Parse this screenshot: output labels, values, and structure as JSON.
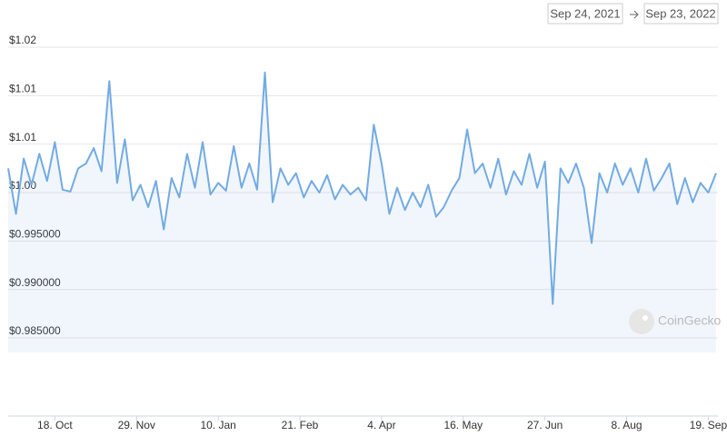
{
  "date_range": {
    "from": "Sep 24, 2021",
    "to": "Sep 23, 2022"
  },
  "watermark": "CoinGecko",
  "chart_data": {
    "type": "line",
    "color": "#72abe3",
    "grid": true,
    "xlim": [
      "2021-09-24",
      "2022-09-23"
    ],
    "xticks": [
      {
        "value": "2021-10-18",
        "label": "18. Oct"
      },
      {
        "value": "2021-11-29",
        "label": "29. Nov"
      },
      {
        "value": "2022-01-10",
        "label": "10. Jan"
      },
      {
        "value": "2022-02-21",
        "label": "21. Feb"
      },
      {
        "value": "2022-04-04",
        "label": "4. Apr"
      },
      {
        "value": "2022-05-16",
        "label": "16. May"
      },
      {
        "value": "2022-06-27",
        "label": "27. Jun"
      },
      {
        "value": "2022-08-08",
        "label": "8. Aug"
      },
      {
        "value": "2022-09-19",
        "label": "19. Sep"
      }
    ],
    "ylim": [
      0.9835,
      1.0165
    ],
    "yticks": [
      {
        "value": 0.985,
        "label": "$0.985000"
      },
      {
        "value": 0.99,
        "label": "$0.990000"
      },
      {
        "value": 0.995,
        "label": "$0.995000"
      },
      {
        "value": 1.0,
        "label": "$1.00"
      },
      {
        "value": 1.005,
        "label": "$1.01"
      },
      {
        "value": 1.01,
        "label": "$1.01"
      },
      {
        "value": 1.015,
        "label": "$1.02"
      }
    ],
    "x": [
      "2021-09-24",
      "2021-09-28",
      "2021-10-02",
      "2021-10-06",
      "2021-10-10",
      "2021-10-14",
      "2021-10-18",
      "2021-10-22",
      "2021-10-26",
      "2021-10-30",
      "2021-11-03",
      "2021-11-07",
      "2021-11-11",
      "2021-11-15",
      "2021-11-19",
      "2021-11-23",
      "2021-11-27",
      "2021-12-01",
      "2021-12-05",
      "2021-12-09",
      "2021-12-13",
      "2021-12-17",
      "2021-12-21",
      "2021-12-25",
      "2021-12-29",
      "2022-01-02",
      "2022-01-06",
      "2022-01-10",
      "2022-01-14",
      "2022-01-18",
      "2022-01-22",
      "2022-01-26",
      "2022-01-30",
      "2022-02-03",
      "2022-02-07",
      "2022-02-11",
      "2022-02-15",
      "2022-02-19",
      "2022-02-23",
      "2022-02-27",
      "2022-03-03",
      "2022-03-07",
      "2022-03-11",
      "2022-03-15",
      "2022-03-19",
      "2022-03-23",
      "2022-03-27",
      "2022-03-31",
      "2022-04-04",
      "2022-04-08",
      "2022-04-12",
      "2022-04-16",
      "2022-04-20",
      "2022-04-24",
      "2022-04-28",
      "2022-05-02",
      "2022-05-06",
      "2022-05-10",
      "2022-05-14",
      "2022-05-18",
      "2022-05-22",
      "2022-05-26",
      "2022-05-30",
      "2022-06-03",
      "2022-06-07",
      "2022-06-11",
      "2022-06-15",
      "2022-06-19",
      "2022-06-23",
      "2022-06-27",
      "2022-07-01",
      "2022-07-05",
      "2022-07-09",
      "2022-07-13",
      "2022-07-17",
      "2022-07-21",
      "2022-07-25",
      "2022-07-29",
      "2022-08-02",
      "2022-08-06",
      "2022-08-10",
      "2022-08-14",
      "2022-08-18",
      "2022-08-22",
      "2022-08-26",
      "2022-08-30",
      "2022-09-03",
      "2022-09-07",
      "2022-09-11",
      "2022-09-15",
      "2022-09-19",
      "2022-09-23"
    ],
    "values": [
      1.0025,
      0.9978,
      1.0035,
      1.0008,
      1.004,
      1.0012,
      1.0052,
      1.0003,
      1.0001,
      1.0025,
      1.003,
      1.0046,
      1.0022,
      1.0115,
      1.001,
      1.0055,
      0.9992,
      1.0008,
      0.9985,
      1.0012,
      0.9962,
      1.0015,
      0.9995,
      1.004,
      1.0005,
      1.0052,
      0.9998,
      1.001,
      1.0002,
      1.0048,
      1.0005,
      1.003,
      1.0003,
      1.0124,
      0.999,
      1.0025,
      1.0008,
      1.002,
      0.9995,
      1.0012,
      1.0,
      1.0018,
      0.9993,
      1.0008,
      0.9998,
      1.0005,
      0.9992,
      1.007,
      1.003,
      0.9978,
      1.0005,
      0.9982,
      1.0,
      0.9985,
      1.0008,
      0.9975,
      0.9985,
      1.0002,
      1.0015,
      1.0065,
      1.002,
      1.003,
      1.0005,
      1.0035,
      0.9998,
      1.0022,
      1.0008,
      1.004,
      1.0005,
      1.0032,
      0.9885,
      1.0025,
      1.001,
      1.003,
      1.0005,
      0.9948,
      1.002,
      1.0,
      1.003,
      1.0008,
      1.0025,
      1.0,
      1.0035,
      1.0002,
      1.0015,
      1.003,
      0.9988,
      1.0015,
      0.999,
      1.001,
      1.0,
      1.002
    ]
  }
}
